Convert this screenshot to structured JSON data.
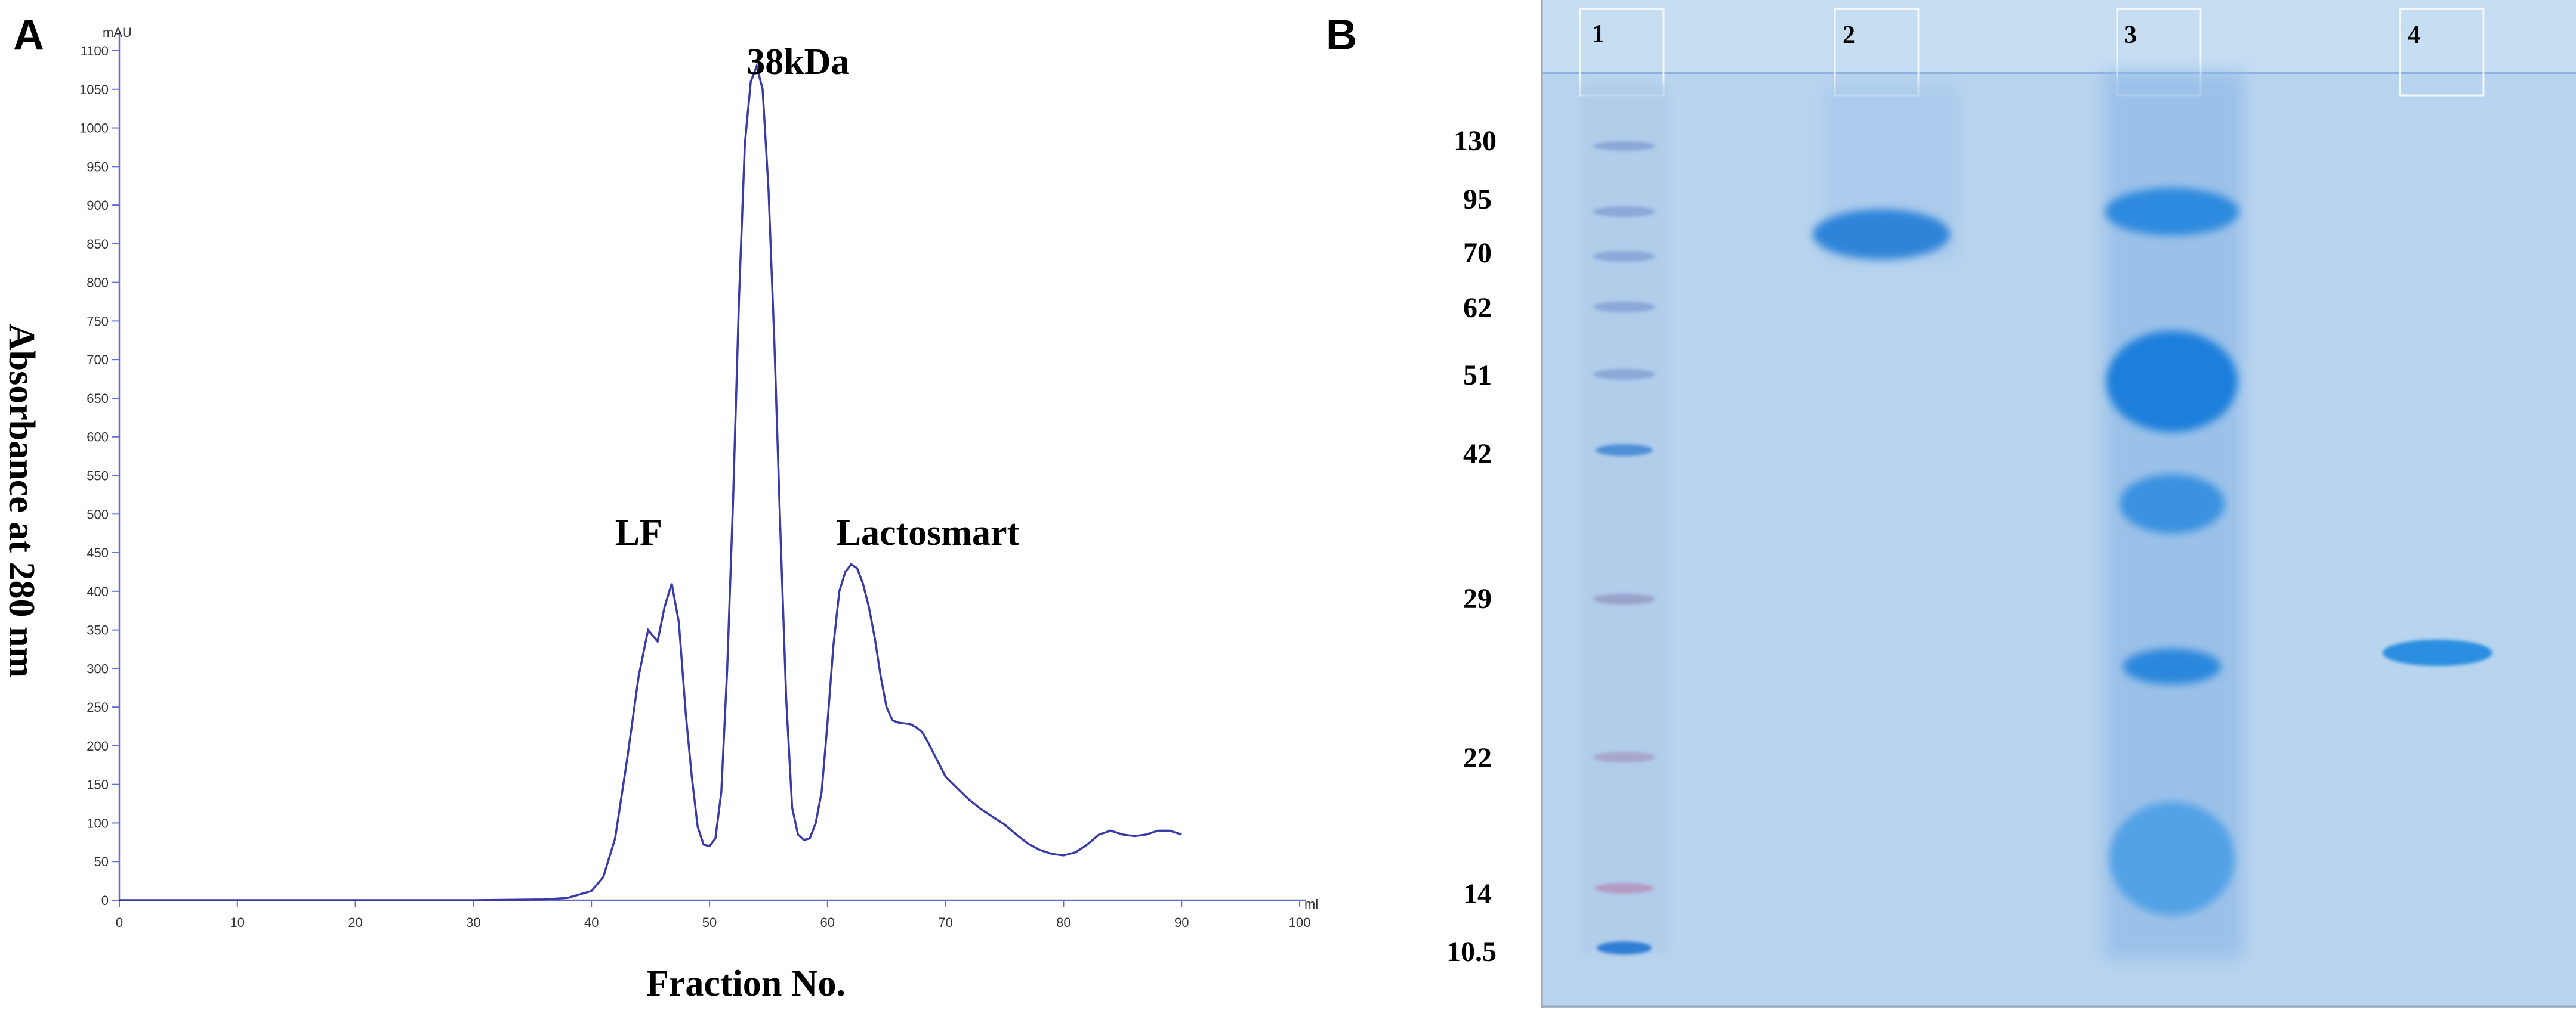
{
  "panels": {
    "a": "A",
    "b": "B"
  },
  "chart_data": {
    "type": "line",
    "xlabel": "Fraction No.",
    "ylabel": "Absorbance at 280 nm",
    "x_unit": "ml",
    "y_unit": "mAU",
    "xlim": [
      0,
      100
    ],
    "ylim": [
      0,
      1100
    ],
    "x_ticks": [
      "0",
      "10",
      "20",
      "30",
      "40",
      "50",
      "60",
      "70",
      "80",
      "90",
      "100"
    ],
    "y_ticks": [
      "0",
      "50",
      "100",
      "150",
      "200",
      "250",
      "300",
      "350",
      "400",
      "450",
      "500",
      "550",
      "600",
      "650",
      "700",
      "750",
      "800",
      "850",
      "900",
      "950",
      "1000",
      "1050",
      "1100"
    ],
    "series": [
      {
        "color": "#3a3aa8",
        "x": [
          0,
          10,
          20,
          30,
          36,
          38,
          40,
          41,
          42,
          43,
          44,
          44.8,
          45.6,
          46.2,
          46.8,
          47.4,
          48,
          48.5,
          49,
          49.5,
          50,
          50.5,
          51,
          51.5,
          52,
          52.5,
          53,
          53.5,
          54,
          54.5,
          55,
          55.5,
          56,
          56.5,
          57,
          57.5,
          58,
          58.5,
          59,
          59.5,
          60,
          60.5,
          61,
          61.5,
          62,
          62.5,
          63,
          63.5,
          64,
          64.5,
          65,
          65.5,
          66,
          66.5,
          67,
          67.5,
          68,
          68.5,
          69,
          69.5,
          70,
          71,
          72,
          73,
          74,
          75,
          76,
          77,
          78,
          79,
          80,
          81,
          82,
          83,
          84,
          85,
          86,
          87,
          88,
          89,
          90
        ],
        "y": [
          0,
          0,
          0,
          0,
          1,
          3,
          12,
          30,
          80,
          180,
          290,
          350,
          335,
          380,
          410,
          360,
          240,
          160,
          95,
          72,
          70,
          80,
          140,
          300,
          520,
          780,
          980,
          1060,
          1080,
          1050,
          920,
          720,
          480,
          260,
          120,
          85,
          78,
          80,
          100,
          140,
          230,
          330,
          400,
          425,
          435,
          430,
          410,
          380,
          340,
          290,
          250,
          233,
          230,
          229,
          228,
          224,
          218,
          205,
          190,
          175,
          160,
          145,
          130,
          118,
          108,
          98,
          85,
          73,
          65,
          60,
          58,
          62,
          72,
          85,
          90,
          85,
          83,
          85,
          90,
          90,
          85
        ]
      }
    ],
    "annotations": [
      {
        "text": "LF",
        "x": 44,
        "y": 460
      },
      {
        "text": "38kDa",
        "x": 57.5,
        "y": 1070
      },
      {
        "text": "Lactosmart",
        "x": 68.5,
        "y": 460
      }
    ]
  },
  "gel": {
    "lanes": [
      "1",
      "2",
      "3",
      "4"
    ],
    "mw_markers": [
      "130",
      "95",
      "70",
      "62",
      "51",
      "42",
      "29",
      "22",
      "14",
      "10.5"
    ]
  }
}
